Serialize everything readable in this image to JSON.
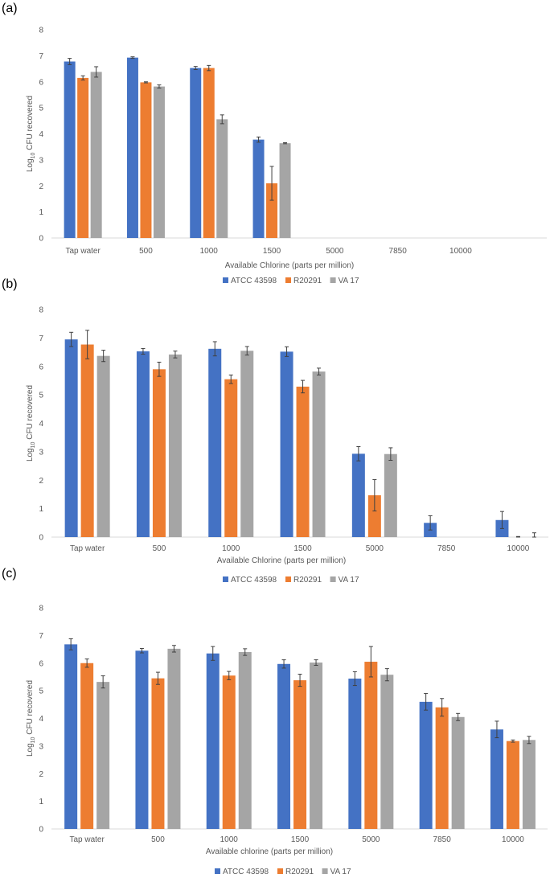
{
  "colors": {
    "ATCC 43598": "#4472C4",
    "R20291": "#ED7D31",
    "VA 17": "#A5A5A5"
  },
  "chart_data": [
    {
      "type": "bar",
      "panel_label": "(a)",
      "categories": [
        "Tap water",
        "500",
        "1000",
        "1500",
        "5000",
        "7850",
        "10000"
      ],
      "xlabel": "Available Chlorine (parts per million)",
      "ylabel_main": "Log",
      "ylabel_sub": "10",
      "ylabel_rest": " CFU recovered",
      "ylim": [
        0,
        8
      ],
      "yticks": [
        "0",
        "1",
        "2",
        "3",
        "4",
        "5",
        "6",
        "7",
        "8"
      ],
      "legend_position": "bottom",
      "series": [
        {
          "name": "ATCC 43598",
          "values": [
            6.78,
            6.93,
            6.53,
            3.78,
            null,
            null,
            null
          ],
          "errors": [
            0.12,
            0.03,
            0.06,
            0.1,
            null,
            null,
            null
          ]
        },
        {
          "name": "R20291",
          "values": [
            6.15,
            5.98,
            6.53,
            2.1,
            null,
            null,
            null
          ],
          "errors": [
            0.08,
            0.02,
            0.1,
            0.65,
            null,
            null,
            null
          ]
        },
        {
          "name": "VA 17",
          "values": [
            6.38,
            5.82,
            4.56,
            3.64,
            null,
            null,
            null
          ],
          "errors": [
            0.2,
            0.06,
            0.17,
            0.02,
            null,
            null,
            null
          ]
        }
      ]
    },
    {
      "type": "bar",
      "panel_label": "(b)",
      "categories": [
        "Tap water",
        "500",
        "1000",
        "1500",
        "5000",
        "7850",
        "10000"
      ],
      "xlabel": "Available Chlorine (parts per million)",
      "ylabel_main": "Log",
      "ylabel_sub": "10",
      "ylabel_rest": " CFU recovered",
      "ylim": [
        0,
        8
      ],
      "yticks": [
        "0",
        "1",
        "2",
        "3",
        "4",
        "5",
        "6",
        "7",
        "8"
      ],
      "legend_position": "bottom",
      "series": [
        {
          "name": "ATCC 43598",
          "values": [
            6.95,
            6.53,
            6.62,
            6.52,
            2.93,
            0.5,
            0.6
          ],
          "errors": [
            0.25,
            0.1,
            0.25,
            0.17,
            0.25,
            0.25,
            0.3
          ]
        },
        {
          "name": "R20291",
          "values": [
            6.77,
            5.9,
            5.55,
            5.29,
            1.47,
            0,
            0
          ],
          "errors": [
            0.5,
            0.25,
            0.15,
            0.22,
            0.55,
            null,
            0.02
          ]
        },
        {
          "name": "VA 17",
          "values": [
            6.37,
            6.42,
            6.55,
            5.82,
            2.92,
            0,
            0
          ],
          "errors": [
            0.2,
            0.12,
            0.15,
            0.12,
            0.22,
            null,
            0.15
          ]
        }
      ]
    },
    {
      "type": "bar",
      "panel_label": "(c)",
      "categories": [
        "Tap water",
        "500",
        "1000",
        "1500",
        "5000",
        "7850",
        "10000"
      ],
      "xlabel": "Available chlorine (parts per million)",
      "ylabel_main": "Log",
      "ylabel_sub": "10",
      "ylabel_rest": " CFU recovered",
      "ylim": [
        0,
        8
      ],
      "yticks": [
        "0",
        "1",
        "2",
        "3",
        "4",
        "5",
        "6",
        "7",
        "8"
      ],
      "legend_position": "bottom",
      "series": [
        {
          "name": "ATCC 43598",
          "values": [
            6.68,
            6.45,
            6.35,
            5.97,
            5.44,
            4.6,
            3.6
          ],
          "errors": [
            0.2,
            0.08,
            0.25,
            0.15,
            0.25,
            0.3,
            0.3
          ]
        },
        {
          "name": "R20291",
          "values": [
            6.0,
            5.45,
            5.55,
            5.38,
            6.05,
            4.4,
            3.18
          ],
          "errors": [
            0.15,
            0.22,
            0.15,
            0.22,
            0.55,
            0.32,
            0.04
          ]
        },
        {
          "name": "VA 17",
          "values": [
            5.32,
            6.52,
            6.4,
            6.02,
            5.58,
            4.05,
            3.22
          ],
          "errors": [
            0.22,
            0.12,
            0.12,
            0.1,
            0.22,
            0.13,
            0.13
          ]
        }
      ]
    }
  ]
}
